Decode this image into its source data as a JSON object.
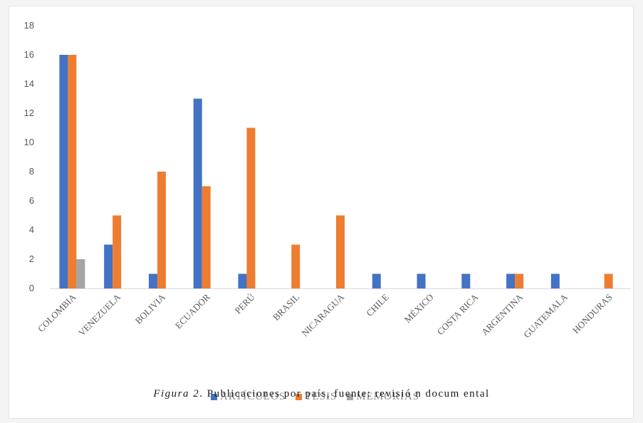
{
  "chart_data": {
    "type": "bar",
    "categories": [
      "COLOMBIA",
      "VENEZUELA",
      "BOLIVIA",
      "ECUADOR",
      "PERÚ",
      "BRASIL",
      "NICARAGUA",
      "CHILE",
      "MÉXICO",
      "COSTA RICA",
      "ARGENTINA",
      "GUATEMALA",
      "HONDURAS"
    ],
    "series": [
      {
        "name": "ARTÍCULOS",
        "color": "#4472c4",
        "values": [
          16,
          3,
          1,
          13,
          1,
          0,
          0,
          1,
          1,
          1,
          1,
          1,
          0
        ]
      },
      {
        "name": "TESIS",
        "color": "#ed7d31",
        "values": [
          16,
          5,
          8,
          7,
          11,
          3,
          5,
          0,
          0,
          0,
          1,
          0,
          1
        ]
      },
      {
        "name": "MEMORIAS",
        "color": "#a5a5a5",
        "values": [
          2,
          0,
          0,
          0,
          0,
          0,
          0,
          0,
          0,
          0,
          0,
          0,
          0
        ]
      }
    ],
    "ylim": [
      0,
      18
    ],
    "yticks": [
      "0",
      "2",
      "4",
      "6",
      "8",
      "10",
      "12",
      "14",
      "16",
      "18"
    ],
    "grid": false,
    "legend_position": "bottom"
  },
  "caption": {
    "label": "Figura  2",
    "text": ". Publicaciones  por  país,  fuente:  revisió n  docum ental"
  }
}
